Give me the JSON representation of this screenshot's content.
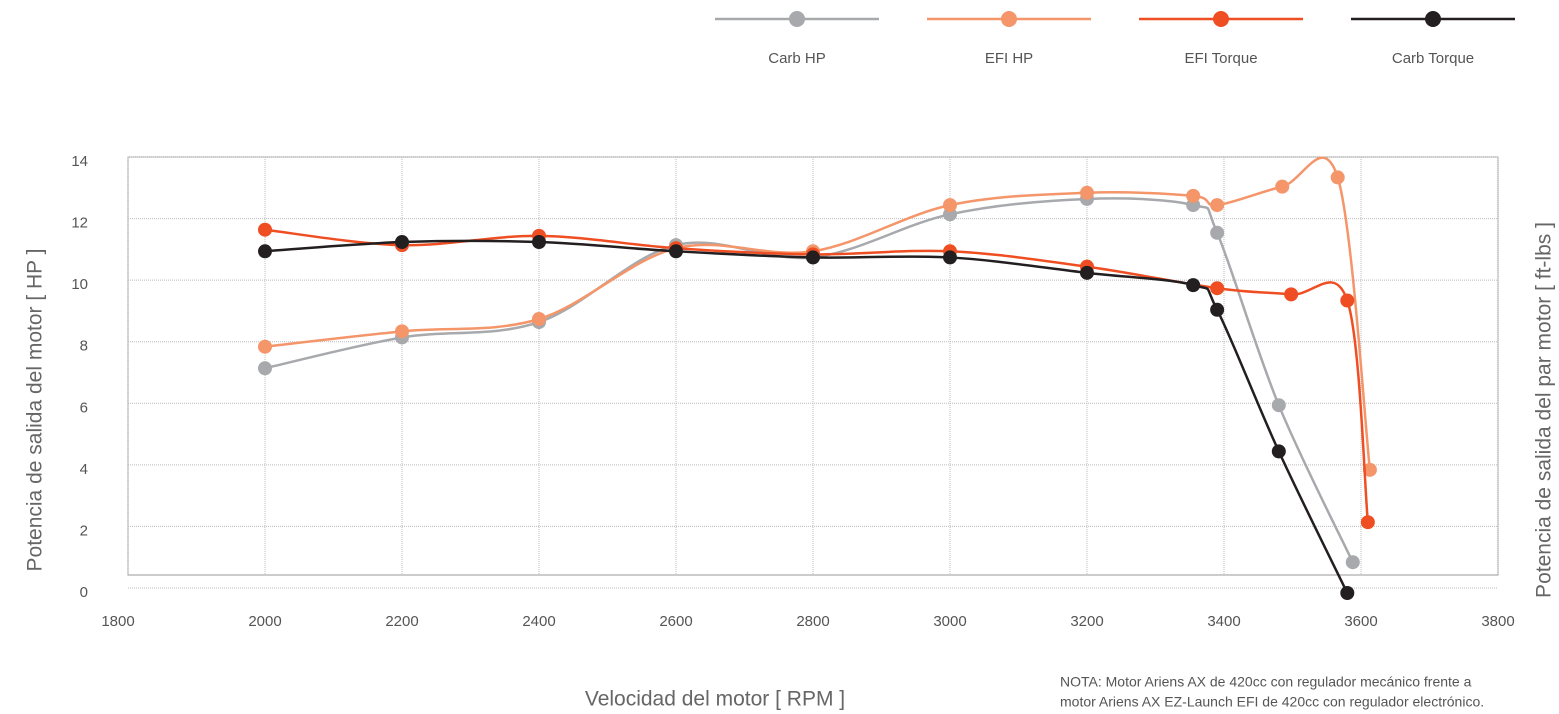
{
  "chart_data": {
    "type": "line",
    "x_label": "Velocidad del motor [ RPM ]",
    "y_label": "Potencia de salida del motor [ HP ]",
    "y2_label": "Potencia de salida del par motor [ ft-lbs ]",
    "note": [
      "NOTA: Motor Ariens AX de 420cc con regulador mecánico frente a",
      "motor Ariens AX EZ-Launch EFI de 420cc con regulador electrónico."
    ],
    "xlim": [
      1800,
      3800
    ],
    "xticks": [
      1800,
      2000,
      2200,
      2400,
      2600,
      2800,
      3000,
      3200,
      3400,
      3600,
      3800
    ],
    "ylim": [
      0,
      14
    ],
    "yticks": [
      0,
      2,
      4,
      6,
      8,
      10,
      12,
      14
    ],
    "grid": true,
    "legend": "top",
    "series": [
      {
        "name": "Carb HP",
        "color": "#a7a9ac",
        "x": [
          2000,
          2200,
          2400,
          2600,
          2800,
          3000,
          3200,
          3355,
          3390,
          3480,
          3588
        ],
        "values": [
          7.3,
          8.3,
          8.8,
          11.3,
          10.9,
          12.3,
          12.8,
          12.6,
          11.7,
          6.1,
          1.0
        ]
      },
      {
        "name": "EFI HP",
        "color": "#f4956a",
        "x": [
          2000,
          2200,
          2400,
          2600,
          2800,
          3000,
          3200,
          3355,
          3390,
          3485,
          3566,
          3613
        ],
        "values": [
          8.0,
          8.5,
          8.9,
          11.2,
          11.1,
          12.6,
          13.0,
          12.9,
          12.6,
          13.2,
          13.5,
          4.0
        ]
      },
      {
        "name": "EFI Torque",
        "color": "#ef4e23",
        "x": [
          2000,
          2200,
          2400,
          2600,
          2800,
          3000,
          3200,
          3390,
          3498,
          3580,
          3610
        ],
        "values": [
          11.8,
          11.3,
          11.6,
          11.2,
          11.0,
          11.1,
          10.6,
          9.9,
          9.7,
          9.5,
          2.3
        ]
      },
      {
        "name": "Carb Torque",
        "color": "#231f20",
        "x": [
          2000,
          2200,
          2400,
          2600,
          2800,
          3000,
          3200,
          3355,
          3390,
          3480,
          3580
        ],
        "values": [
          11.1,
          11.4,
          11.4,
          11.1,
          10.9,
          10.9,
          10.4,
          10.0,
          9.2,
          4.6,
          0
        ]
      }
    ]
  }
}
